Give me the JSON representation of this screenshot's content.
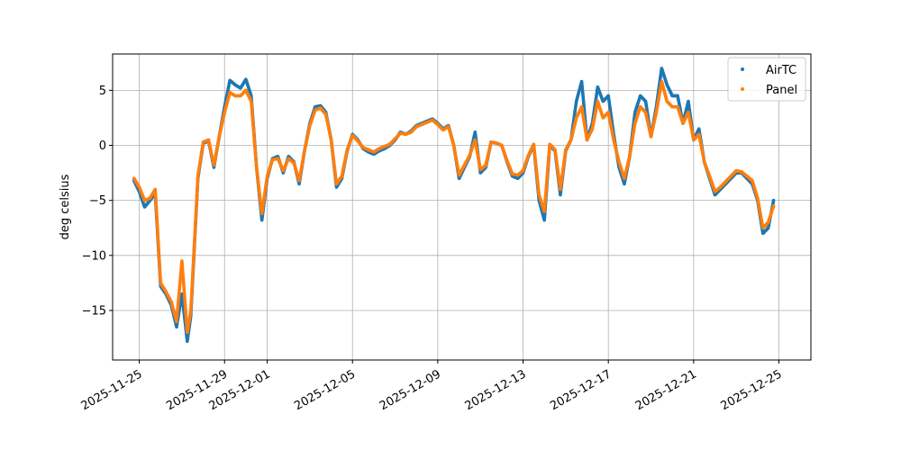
{
  "chart_data": {
    "type": "scatter",
    "title": "",
    "xlabel": "",
    "ylabel": "deg celsius",
    "x_tick_labels": [
      "2025-11-25",
      "2025-11-29",
      "2025-12-01",
      "2025-12-05",
      "2025-12-09",
      "2025-12-13",
      "2025-12-17",
      "2025-12-21",
      "2025-12-25"
    ],
    "y_tick_labels": [
      "5",
      "0",
      "−5",
      "−10",
      "−15"
    ],
    "y_ticks": [
      5,
      0,
      -5,
      -10,
      -15
    ],
    "xlim": [
      "2025-11-23T18:00",
      "2025-12-26T12:00"
    ],
    "ylim": [
      -19.5,
      8.3
    ],
    "grid": true,
    "legend_position": "top-right",
    "series": [
      {
        "name": "AirTC",
        "color": "#1f77b4",
        "points": [
          [
            "2025-11-24T18:00",
            -3.2
          ],
          [
            "2025-11-25T00:00",
            -4.2
          ],
          [
            "2025-11-25T06:00",
            -5.6
          ],
          [
            "2025-11-25T12:00",
            -5.0
          ],
          [
            "2025-11-25T18:00",
            -4.4
          ],
          [
            "2025-11-26T00:00",
            -12.8
          ],
          [
            "2025-11-26T06:00",
            -13.5
          ],
          [
            "2025-11-26T12:00",
            -14.5
          ],
          [
            "2025-11-26T18:00",
            -16.5
          ],
          [
            "2025-11-27T00:00",
            -13.5
          ],
          [
            "2025-11-27T06:00",
            -17.8
          ],
          [
            "2025-11-27T10:00",
            -15.5
          ],
          [
            "2025-11-27T18:00",
            -3.0
          ],
          [
            "2025-11-28T00:00",
            0.2
          ],
          [
            "2025-11-28T06:00",
            0.4
          ],
          [
            "2025-11-28T12:00",
            -2.0
          ],
          [
            "2025-11-28T18:00",
            0.8
          ],
          [
            "2025-11-29T00:00",
            3.5
          ],
          [
            "2025-11-29T06:00",
            5.9
          ],
          [
            "2025-11-29T12:00",
            5.5
          ],
          [
            "2025-11-29T18:00",
            5.2
          ],
          [
            "2025-11-30T00:00",
            6.0
          ],
          [
            "2025-11-30T06:00",
            4.5
          ],
          [
            "2025-11-30T12:00",
            -2.0
          ],
          [
            "2025-11-30T18:00",
            -6.8
          ],
          [
            "2025-12-01T00:00",
            -3.0
          ],
          [
            "2025-12-01T06:00",
            -1.2
          ],
          [
            "2025-12-01T12:00",
            -1.0
          ],
          [
            "2025-12-01T18:00",
            -2.5
          ],
          [
            "2025-12-02T00:00",
            -1.0
          ],
          [
            "2025-12-02T06:00",
            -1.5
          ],
          [
            "2025-12-02T12:00",
            -3.5
          ],
          [
            "2025-12-02T18:00",
            -0.5
          ],
          [
            "2025-12-03T00:00",
            2.0
          ],
          [
            "2025-12-03T06:00",
            3.5
          ],
          [
            "2025-12-03T12:00",
            3.6
          ],
          [
            "2025-12-03T18:00",
            3.0
          ],
          [
            "2025-12-04T00:00",
            0.5
          ],
          [
            "2025-12-04T06:00",
            -3.8
          ],
          [
            "2025-12-04T12:00",
            -3.0
          ],
          [
            "2025-12-04T18:00",
            -0.5
          ],
          [
            "2025-12-05T00:00",
            1.0
          ],
          [
            "2025-12-05T06:00",
            0.5
          ],
          [
            "2025-12-05T12:00",
            -0.3
          ],
          [
            "2025-12-05T18:00",
            -0.6
          ],
          [
            "2025-12-06T00:00",
            -0.8
          ],
          [
            "2025-12-06T06:00",
            -0.5
          ],
          [
            "2025-12-06T12:00",
            -0.3
          ],
          [
            "2025-12-06T18:00",
            0.0
          ],
          [
            "2025-12-07T00:00",
            0.5
          ],
          [
            "2025-12-07T06:00",
            1.2
          ],
          [
            "2025-12-07T12:00",
            1.0
          ],
          [
            "2025-12-07T18:00",
            1.3
          ],
          [
            "2025-12-08T00:00",
            1.8
          ],
          [
            "2025-12-08T06:00",
            2.0
          ],
          [
            "2025-12-08T12:00",
            2.2
          ],
          [
            "2025-12-08T18:00",
            2.4
          ],
          [
            "2025-12-09T00:00",
            2.0
          ],
          [
            "2025-12-09T06:00",
            1.5
          ],
          [
            "2025-12-09T12:00",
            1.8
          ],
          [
            "2025-12-09T18:00",
            0.0
          ],
          [
            "2025-12-10T00:00",
            -3.0
          ],
          [
            "2025-12-10T06:00",
            -2.0
          ],
          [
            "2025-12-10T12:00",
            -1.0
          ],
          [
            "2025-12-10T18:00",
            1.2
          ],
          [
            "2025-12-11T00:00",
            -2.5
          ],
          [
            "2025-12-11T06:00",
            -2.0
          ],
          [
            "2025-12-11T12:00",
            0.3
          ],
          [
            "2025-12-11T18:00",
            0.2
          ],
          [
            "2025-12-12T00:00",
            0.0
          ],
          [
            "2025-12-12T06:00",
            -1.5
          ],
          [
            "2025-12-12T12:00",
            -2.8
          ],
          [
            "2025-12-12T18:00",
            -3.0
          ],
          [
            "2025-12-13T00:00",
            -2.5
          ],
          [
            "2025-12-13T06:00",
            -1.0
          ],
          [
            "2025-12-13T12:00",
            0.0
          ],
          [
            "2025-12-13T18:00",
            -5.0
          ],
          [
            "2025-12-14T00:00",
            -6.8
          ],
          [
            "2025-12-14T06:00",
            0.0
          ],
          [
            "2025-12-14T12:00",
            -0.5
          ],
          [
            "2025-12-14T18:00",
            -4.5
          ],
          [
            "2025-12-15T00:00",
            -0.5
          ],
          [
            "2025-12-15T06:00",
            0.5
          ],
          [
            "2025-12-15T12:00",
            4.0
          ],
          [
            "2025-12-15T18:00",
            5.8
          ],
          [
            "2025-12-16T00:00",
            0.5
          ],
          [
            "2025-12-16T06:00",
            2.0
          ],
          [
            "2025-12-16T12:00",
            5.3
          ],
          [
            "2025-12-16T18:00",
            4.0
          ],
          [
            "2025-12-17T00:00",
            4.5
          ],
          [
            "2025-12-17T06:00",
            1.0
          ],
          [
            "2025-12-17T12:00",
            -2.0
          ],
          [
            "2025-12-17T18:00",
            -3.5
          ],
          [
            "2025-12-18T00:00",
            -1.0
          ],
          [
            "2025-12-18T06:00",
            3.0
          ],
          [
            "2025-12-18T12:00",
            4.5
          ],
          [
            "2025-12-18T18:00",
            4.0
          ],
          [
            "2025-12-19T00:00",
            0.8
          ],
          [
            "2025-12-19T06:00",
            3.5
          ],
          [
            "2025-12-19T12:00",
            7.0
          ],
          [
            "2025-12-19T18:00",
            5.5
          ],
          [
            "2025-12-20T00:00",
            4.5
          ],
          [
            "2025-12-20T06:00",
            4.5
          ],
          [
            "2025-12-20T12:00",
            2.0
          ],
          [
            "2025-12-20T18:00",
            4.0
          ],
          [
            "2025-12-21T00:00",
            0.5
          ],
          [
            "2025-12-21T06:00",
            1.5
          ],
          [
            "2025-12-21T12:00",
            -1.5
          ],
          [
            "2025-12-21T18:00",
            -3.0
          ],
          [
            "2025-12-22T00:00",
            -4.5
          ],
          [
            "2025-12-22T06:00",
            -4.0
          ],
          [
            "2025-12-22T12:00",
            -3.5
          ],
          [
            "2025-12-22T18:00",
            -3.0
          ],
          [
            "2025-12-23T00:00",
            -2.5
          ],
          [
            "2025-12-23T06:00",
            -2.5
          ],
          [
            "2025-12-23T12:00",
            -3.0
          ],
          [
            "2025-12-23T18:00",
            -3.5
          ],
          [
            "2025-12-24T00:00",
            -5.0
          ],
          [
            "2025-12-24T06:00",
            -8.0
          ],
          [
            "2025-12-24T12:00",
            -7.5
          ],
          [
            "2025-12-24T18:00",
            -5.0
          ]
        ]
      },
      {
        "name": "Panel",
        "color": "#ff7f0e",
        "points": [
          [
            "2025-11-24T18:00",
            -3.0
          ],
          [
            "2025-11-25T00:00",
            -3.8
          ],
          [
            "2025-11-25T06:00",
            -5.0
          ],
          [
            "2025-11-25T12:00",
            -4.8
          ],
          [
            "2025-11-25T18:00",
            -4.0
          ],
          [
            "2025-11-26T00:00",
            -12.5
          ],
          [
            "2025-11-26T06:00",
            -13.3
          ],
          [
            "2025-11-26T12:00",
            -14.2
          ],
          [
            "2025-11-26T18:00",
            -16.0
          ],
          [
            "2025-11-27T00:00",
            -10.5
          ],
          [
            "2025-11-27T06:00",
            -17.0
          ],
          [
            "2025-11-27T10:00",
            -15.0
          ],
          [
            "2025-11-27T18:00",
            -2.8
          ],
          [
            "2025-11-28T00:00",
            0.3
          ],
          [
            "2025-11-28T06:00",
            0.5
          ],
          [
            "2025-11-28T12:00",
            -1.8
          ],
          [
            "2025-11-28T18:00",
            0.8
          ],
          [
            "2025-11-29T00:00",
            3.0
          ],
          [
            "2025-11-29T06:00",
            4.8
          ],
          [
            "2025-11-29T12:00",
            4.5
          ],
          [
            "2025-11-29T18:00",
            4.5
          ],
          [
            "2025-11-30T00:00",
            5.0
          ],
          [
            "2025-11-30T06:00",
            4.0
          ],
          [
            "2025-11-30T12:00",
            -2.0
          ],
          [
            "2025-11-30T18:00",
            -6.2
          ],
          [
            "2025-12-01T00:00",
            -2.8
          ],
          [
            "2025-12-01T06:00",
            -1.3
          ],
          [
            "2025-12-01T12:00",
            -1.2
          ],
          [
            "2025-12-01T18:00",
            -2.3
          ],
          [
            "2025-12-02T00:00",
            -1.2
          ],
          [
            "2025-12-02T06:00",
            -1.6
          ],
          [
            "2025-12-02T12:00",
            -3.2
          ],
          [
            "2025-12-02T18:00",
            -0.5
          ],
          [
            "2025-12-03T00:00",
            1.8
          ],
          [
            "2025-12-03T06:00",
            3.2
          ],
          [
            "2025-12-03T12:00",
            3.4
          ],
          [
            "2025-12-03T18:00",
            2.8
          ],
          [
            "2025-12-04T00:00",
            0.5
          ],
          [
            "2025-12-04T06:00",
            -3.5
          ],
          [
            "2025-12-04T12:00",
            -2.8
          ],
          [
            "2025-12-04T18:00",
            -0.4
          ],
          [
            "2025-12-05T00:00",
            0.9
          ],
          [
            "2025-12-05T06:00",
            0.4
          ],
          [
            "2025-12-05T12:00",
            -0.2
          ],
          [
            "2025-12-05T18:00",
            -0.4
          ],
          [
            "2025-12-06T00:00",
            -0.6
          ],
          [
            "2025-12-06T06:00",
            -0.3
          ],
          [
            "2025-12-06T12:00",
            -0.1
          ],
          [
            "2025-12-06T18:00",
            0.1
          ],
          [
            "2025-12-07T00:00",
            0.6
          ],
          [
            "2025-12-07T06:00",
            1.1
          ],
          [
            "2025-12-07T12:00",
            1.0
          ],
          [
            "2025-12-07T18:00",
            1.2
          ],
          [
            "2025-12-08T00:00",
            1.7
          ],
          [
            "2025-12-08T06:00",
            1.9
          ],
          [
            "2025-12-08T12:00",
            2.1
          ],
          [
            "2025-12-08T18:00",
            2.3
          ],
          [
            "2025-12-09T00:00",
            1.9
          ],
          [
            "2025-12-09T06:00",
            1.4
          ],
          [
            "2025-12-09T12:00",
            1.7
          ],
          [
            "2025-12-09T18:00",
            0.0
          ],
          [
            "2025-12-10T00:00",
            -2.7
          ],
          [
            "2025-12-10T06:00",
            -1.8
          ],
          [
            "2025-12-10T12:00",
            -0.9
          ],
          [
            "2025-12-10T18:00",
            0.5
          ],
          [
            "2025-12-11T00:00",
            -2.2
          ],
          [
            "2025-12-11T06:00",
            -1.8
          ],
          [
            "2025-12-11T12:00",
            0.3
          ],
          [
            "2025-12-11T18:00",
            0.2
          ],
          [
            "2025-12-12T00:00",
            0.0
          ],
          [
            "2025-12-12T06:00",
            -1.4
          ],
          [
            "2025-12-12T12:00",
            -2.6
          ],
          [
            "2025-12-12T18:00",
            -2.7
          ],
          [
            "2025-12-13T00:00",
            -2.3
          ],
          [
            "2025-12-13T06:00",
            -0.9
          ],
          [
            "2025-12-13T12:00",
            0.1
          ],
          [
            "2025-12-13T18:00",
            -4.5
          ],
          [
            "2025-12-14T00:00",
            -6.0
          ],
          [
            "2025-12-14T06:00",
            0.1
          ],
          [
            "2025-12-14T12:00",
            -0.4
          ],
          [
            "2025-12-14T18:00",
            -4.0
          ],
          [
            "2025-12-15T00:00",
            -0.4
          ],
          [
            "2025-12-15T06:00",
            0.5
          ],
          [
            "2025-12-15T12:00",
            2.5
          ],
          [
            "2025-12-15T18:00",
            3.5
          ],
          [
            "2025-12-16T00:00",
            0.5
          ],
          [
            "2025-12-16T06:00",
            1.5
          ],
          [
            "2025-12-16T12:00",
            4.0
          ],
          [
            "2025-12-16T18:00",
            2.5
          ],
          [
            "2025-12-17T00:00",
            3.0
          ],
          [
            "2025-12-17T06:00",
            0.5
          ],
          [
            "2025-12-17T12:00",
            -1.5
          ],
          [
            "2025-12-17T18:00",
            -3.0
          ],
          [
            "2025-12-18T00:00",
            -1.0
          ],
          [
            "2025-12-18T06:00",
            2.0
          ],
          [
            "2025-12-18T12:00",
            3.5
          ],
          [
            "2025-12-18T18:00",
            3.0
          ],
          [
            "2025-12-19T00:00",
            0.8
          ],
          [
            "2025-12-19T06:00",
            3.0
          ],
          [
            "2025-12-19T12:00",
            5.8
          ],
          [
            "2025-12-19T18:00",
            4.0
          ],
          [
            "2025-12-20T00:00",
            3.5
          ],
          [
            "2025-12-20T06:00",
            3.5
          ],
          [
            "2025-12-20T12:00",
            2.0
          ],
          [
            "2025-12-20T18:00",
            3.0
          ],
          [
            "2025-12-21T00:00",
            0.5
          ],
          [
            "2025-12-21T06:00",
            1.0
          ],
          [
            "2025-12-21T12:00",
            -1.5
          ],
          [
            "2025-12-21T18:00",
            -2.8
          ],
          [
            "2025-12-22T00:00",
            -4.2
          ],
          [
            "2025-12-22T06:00",
            -3.8
          ],
          [
            "2025-12-22T12:00",
            -3.3
          ],
          [
            "2025-12-22T18:00",
            -2.8
          ],
          [
            "2025-12-23T00:00",
            -2.3
          ],
          [
            "2025-12-23T06:00",
            -2.4
          ],
          [
            "2025-12-23T12:00",
            -2.8
          ],
          [
            "2025-12-23T18:00",
            -3.2
          ],
          [
            "2025-12-24T00:00",
            -4.8
          ],
          [
            "2025-12-24T06:00",
            -7.5
          ],
          [
            "2025-12-24T12:00",
            -7.0
          ],
          [
            "2025-12-24T18:00",
            -5.5
          ]
        ]
      }
    ]
  }
}
